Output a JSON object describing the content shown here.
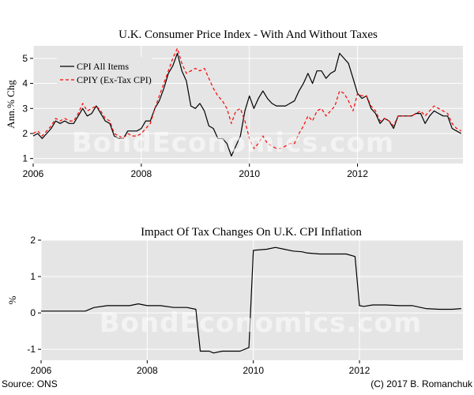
{
  "watermark": "BondEconomics.com",
  "footer": {
    "source": "Source: ONS",
    "copyright": "(C) 2017 B. Romanchuk"
  },
  "colors": {
    "panel_bg": "#e5e5e5",
    "grid": "#ffffff",
    "series_all": "#000000",
    "series_extax": "#ff0000"
  },
  "chart_data": [
    {
      "type": "line",
      "title": "U.K. Consumer Price Index - With And Without Taxes",
      "xlabel": "",
      "ylabel": "Ann.% Chg",
      "xlim": [
        2006.0,
        2013.95
      ],
      "ylim": [
        0.8,
        5.5
      ],
      "xticks": [
        "2006",
        "2008",
        "2010",
        "2012"
      ],
      "yticks": [
        "1",
        "2",
        "3",
        "4",
        "5"
      ],
      "grid": true,
      "legend": "top-left",
      "series": [
        {
          "name": "CPI All Items",
          "style": "solid",
          "x": [
            2006.0,
            2006.083,
            2006.167,
            2006.25,
            2006.333,
            2006.417,
            2006.5,
            2006.583,
            2006.667,
            2006.75,
            2006.833,
            2006.917,
            2007.0,
            2007.083,
            2007.167,
            2007.25,
            2007.333,
            2007.417,
            2007.5,
            2007.583,
            2007.667,
            2007.75,
            2007.833,
            2007.917,
            2008.0,
            2008.083,
            2008.167,
            2008.25,
            2008.333,
            2008.417,
            2008.5,
            2008.583,
            2008.667,
            2008.75,
            2008.833,
            2008.917,
            2009.0,
            2009.083,
            2009.167,
            2009.25,
            2009.333,
            2009.417,
            2009.5,
            2009.583,
            2009.667,
            2009.75,
            2009.833,
            2009.917,
            2010.0,
            2010.083,
            2010.167,
            2010.25,
            2010.333,
            2010.417,
            2010.5,
            2010.583,
            2010.667,
            2010.75,
            2010.833,
            2010.917,
            2011.0,
            2011.083,
            2011.167,
            2011.25,
            2011.333,
            2011.417,
            2011.5,
            2011.583,
            2011.667,
            2011.75,
            2011.833,
            2011.917,
            2012.0,
            2012.083,
            2012.167,
            2012.25,
            2012.333,
            2012.417,
            2012.5,
            2012.583,
            2012.667,
            2012.75,
            2012.833,
            2012.917,
            2013.0,
            2013.083,
            2013.167,
            2013.25,
            2013.333,
            2013.417,
            2013.5,
            2013.583,
            2013.667,
            2013.75,
            2013.833,
            2013.917
          ],
          "values": [
            1.9,
            2.0,
            1.8,
            2.0,
            2.2,
            2.5,
            2.4,
            2.5,
            2.4,
            2.4,
            2.7,
            3.0,
            2.7,
            2.8,
            3.1,
            2.8,
            2.5,
            2.4,
            1.9,
            1.8,
            1.8,
            2.1,
            2.1,
            2.1,
            2.2,
            2.5,
            2.5,
            3.0,
            3.3,
            3.8,
            4.4,
            4.7,
            5.2,
            4.5,
            4.1,
            3.1,
            3.0,
            3.2,
            2.9,
            2.3,
            2.2,
            1.8,
            1.8,
            1.6,
            1.1,
            1.5,
            1.9,
            2.9,
            3.5,
            3.0,
            3.4,
            3.7,
            3.4,
            3.2,
            3.1,
            3.1,
            3.1,
            3.2,
            3.3,
            3.7,
            4.0,
            4.4,
            4.0,
            4.5,
            4.5,
            4.2,
            4.4,
            4.5,
            5.2,
            5.0,
            4.8,
            4.2,
            3.6,
            3.4,
            3.5,
            3.0,
            2.8,
            2.4,
            2.6,
            2.5,
            2.2,
            2.7,
            2.7,
            2.7,
            2.7,
            2.8,
            2.8,
            2.4,
            2.7,
            2.9,
            2.8,
            2.7,
            2.7,
            2.2,
            2.1,
            2.0
          ]
        },
        {
          "name": "CPIY (Ex-Tax CPI)",
          "style": "dashed",
          "x": [
            2006.0,
            2006.083,
            2006.167,
            2006.25,
            2006.333,
            2006.417,
            2006.5,
            2006.583,
            2006.667,
            2006.75,
            2006.833,
            2006.917,
            2007.0,
            2007.083,
            2007.167,
            2007.25,
            2007.333,
            2007.417,
            2007.5,
            2007.583,
            2007.667,
            2007.75,
            2007.833,
            2007.917,
            2008.0,
            2008.083,
            2008.167,
            2008.25,
            2008.333,
            2008.417,
            2008.5,
            2008.583,
            2008.667,
            2008.75,
            2008.833,
            2008.917,
            2009.0,
            2009.083,
            2009.167,
            2009.25,
            2009.333,
            2009.417,
            2009.5,
            2009.583,
            2009.667,
            2009.75,
            2009.833,
            2009.917,
            2010.0,
            2010.083,
            2010.167,
            2010.25,
            2010.333,
            2010.417,
            2010.5,
            2010.583,
            2010.667,
            2010.75,
            2010.833,
            2010.917,
            2011.0,
            2011.083,
            2011.167,
            2011.25,
            2011.333,
            2011.417,
            2011.5,
            2011.583,
            2011.667,
            2011.75,
            2011.833,
            2011.917,
            2012.0,
            2012.083,
            2012.167,
            2012.25,
            2012.333,
            2012.417,
            2012.5,
            2012.583,
            2012.667,
            2012.75,
            2012.833,
            2012.917,
            2013.0,
            2013.083,
            2013.167,
            2013.25,
            2013.333,
            2013.417,
            2013.5,
            2013.583,
            2013.667,
            2013.75,
            2013.833,
            2013.917
          ],
          "values": [
            2.0,
            2.1,
            1.9,
            2.1,
            2.3,
            2.6,
            2.5,
            2.6,
            2.5,
            2.5,
            2.8,
            3.2,
            2.9,
            3.0,
            3.1,
            2.9,
            2.6,
            2.5,
            2.0,
            1.9,
            1.8,
            2.0,
            1.9,
            1.9,
            2.0,
            2.2,
            2.4,
            3.0,
            3.5,
            4.0,
            4.5,
            5.0,
            5.4,
            4.8,
            4.4,
            4.5,
            4.6,
            4.5,
            4.6,
            4.2,
            3.8,
            3.5,
            3.3,
            3.0,
            2.4,
            2.9,
            3.0,
            2.5,
            1.8,
            1.4,
            1.6,
            1.9,
            1.6,
            1.5,
            1.4,
            1.4,
            1.5,
            1.6,
            1.6,
            2.0,
            2.3,
            2.7,
            2.5,
            2.9,
            3.0,
            2.7,
            2.9,
            3.1,
            3.7,
            3.6,
            3.3,
            2.9,
            3.6,
            3.5,
            3.5,
            3.1,
            2.9,
            2.5,
            2.6,
            2.5,
            2.3,
            2.7,
            2.7,
            2.7,
            2.7,
            2.8,
            2.9,
            2.7,
            2.9,
            3.1,
            3.0,
            2.9,
            2.8,
            2.4,
            2.2,
            2.1
          ]
        }
      ]
    },
    {
      "type": "line",
      "title": "Impact Of Tax Changes On U.K. CPI Inflation",
      "xlabel": "",
      "ylabel": "%",
      "xlim": [
        2006.0,
        2013.95
      ],
      "ylim": [
        -1.3,
        2.0
      ],
      "xticks": [
        "2006",
        "2008",
        "2010",
        "2012"
      ],
      "yticks": [
        "-1",
        "0",
        "1",
        "2"
      ],
      "grid": true,
      "series": [
        {
          "name": "",
          "style": "solid",
          "x": [
            2006.0,
            2006.5,
            2006.833,
            2007.0,
            2007.25,
            2007.5,
            2007.667,
            2007.833,
            2008.0,
            2008.25,
            2008.5,
            2008.75,
            2008.917,
            2009.0,
            2009.167,
            2009.25,
            2009.417,
            2009.583,
            2009.75,
            2009.917,
            2010.0,
            2010.25,
            2010.417,
            2010.583,
            2010.75,
            2010.917,
            2011.0,
            2011.25,
            2011.5,
            2011.75,
            2011.917,
            2012.0,
            2012.083,
            2012.25,
            2012.5,
            2012.75,
            2013.0,
            2013.25,
            2013.5,
            2013.75,
            2013.917
          ],
          "values": [
            0.05,
            0.05,
            0.05,
            0.15,
            0.2,
            0.2,
            0.2,
            0.25,
            0.2,
            0.2,
            0.15,
            0.15,
            0.1,
            -1.05,
            -1.05,
            -1.1,
            -1.05,
            -1.05,
            -1.05,
            -0.95,
            1.72,
            1.75,
            1.8,
            1.75,
            1.7,
            1.68,
            1.65,
            1.62,
            1.62,
            1.62,
            1.55,
            0.2,
            0.18,
            0.22,
            0.22,
            0.2,
            0.2,
            0.12,
            0.1,
            0.1,
            0.12
          ]
        }
      ]
    }
  ]
}
